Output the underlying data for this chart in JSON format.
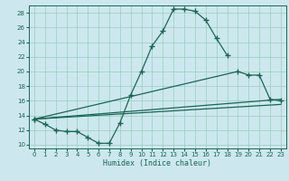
{
  "xlabel": "Humidex (Indice chaleur)",
  "background_color": "#cce8ee",
  "grid_color": "#99ccbb",
  "line_color": "#1a6655",
  "xlim": [
    -0.5,
    23.5
  ],
  "ylim": [
    9.5,
    29.0
  ],
  "yticks": [
    10,
    12,
    14,
    16,
    18,
    20,
    22,
    24,
    26,
    28
  ],
  "xticks": [
    0,
    1,
    2,
    3,
    4,
    5,
    6,
    7,
    8,
    9,
    10,
    11,
    12,
    13,
    14,
    15,
    16,
    17,
    18,
    19,
    20,
    21,
    22,
    23
  ],
  "line1_x": [
    0,
    1,
    2,
    3,
    4,
    5,
    6,
    7,
    8,
    9,
    10,
    11,
    12,
    13,
    14,
    15,
    16,
    17,
    18
  ],
  "line1_y": [
    13.5,
    12.8,
    12.0,
    11.8,
    11.8,
    11.0,
    10.2,
    10.2,
    13.0,
    16.8,
    20.0,
    23.5,
    25.5,
    28.5,
    28.5,
    28.2,
    27.0,
    24.5,
    22.2
  ],
  "line2_x": [
    0,
    19,
    20,
    21,
    22,
    23
  ],
  "line2_y": [
    13.5,
    20.0,
    19.5,
    19.5,
    16.2,
    16.0
  ],
  "line3_x": [
    0,
    23
  ],
  "line3_y": [
    13.5,
    16.2
  ],
  "line4_x": [
    0,
    23
  ],
  "line4_y": [
    13.5,
    15.5
  ]
}
